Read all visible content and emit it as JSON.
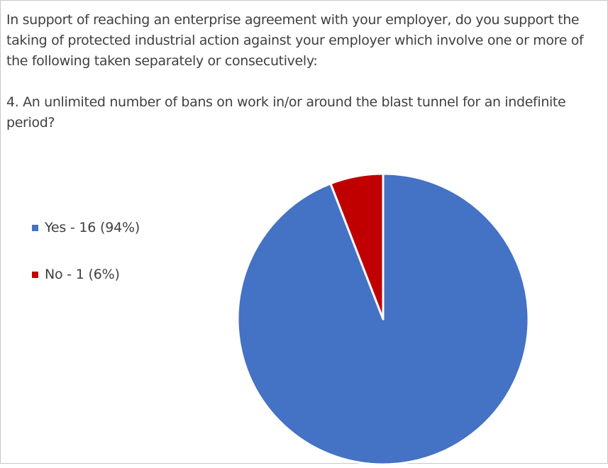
{
  "question": {
    "intro": "In support of reaching an enterprise agreement with your employer, do you support the taking of protected industrial action against your employer which involve one or more of the following taken separately or consecutively:",
    "item": "4. An unlimited number of bans on work in/or around the blast tunnel for an indefinite period?"
  },
  "chart_data": {
    "type": "pie",
    "title": "",
    "categories": [
      "Yes",
      "No"
    ],
    "values": [
      16,
      1
    ],
    "percentages": [
      94,
      6
    ],
    "colors": [
      "#4472C4",
      "#C00000"
    ],
    "legend_labels": [
      "Yes - 16 (94%)",
      "No - 1 (6%)"
    ],
    "legend_position": "left",
    "start_angle_deg": 0,
    "direction": "clockwise"
  }
}
